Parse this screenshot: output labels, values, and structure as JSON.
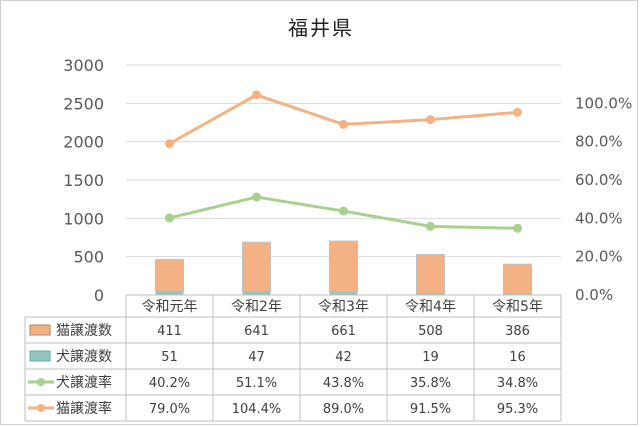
{
  "chart_data": {
    "type": "bar+line",
    "title": "福井県",
    "categories": [
      "令和元年",
      "令和2年",
      "令和3年",
      "令和4年",
      "令和5年"
    ],
    "y_left": {
      "min": 0,
      "max": 3000,
      "ticks": [
        "0",
        "500",
        "1000",
        "1500",
        "2000",
        "2500",
        "3000"
      ]
    },
    "y_right": {
      "min": 0,
      "max": 120,
      "ticks": [
        "0.0%",
        "20.0%",
        "40.0%",
        "60.0%",
        "80.0%",
        "100.0%"
      ]
    },
    "grid": true,
    "legend": "data-table",
    "bar_series": [
      {
        "name": "猫譲渡数",
        "values": [
          411,
          641,
          661,
          508,
          386
        ],
        "labels": [
          "411",
          "641",
          "661",
          "508",
          "386"
        ],
        "color": "#f4b183"
      },
      {
        "name": "犬譲渡数",
        "values": [
          51,
          47,
          42,
          19,
          16
        ],
        "labels": [
          "51",
          "47",
          "42",
          "19",
          "16"
        ],
        "color": "#8fc8c0"
      }
    ],
    "line_series": [
      {
        "name": "犬譲渡率",
        "values": [
          40.2,
          51.1,
          43.8,
          35.8,
          34.8
        ],
        "labels": [
          "40.2%",
          "51.1%",
          "43.8%",
          "35.8%",
          "34.8%"
        ],
        "color": "#a9d18e"
      },
      {
        "name": "猫譲渡率",
        "values": [
          79.0,
          104.4,
          89.0,
          91.5,
          95.3
        ],
        "labels": [
          "79.0%",
          "104.4%",
          "89.0%",
          "91.5%",
          "95.3%"
        ],
        "color": "#f4b183"
      }
    ]
  }
}
